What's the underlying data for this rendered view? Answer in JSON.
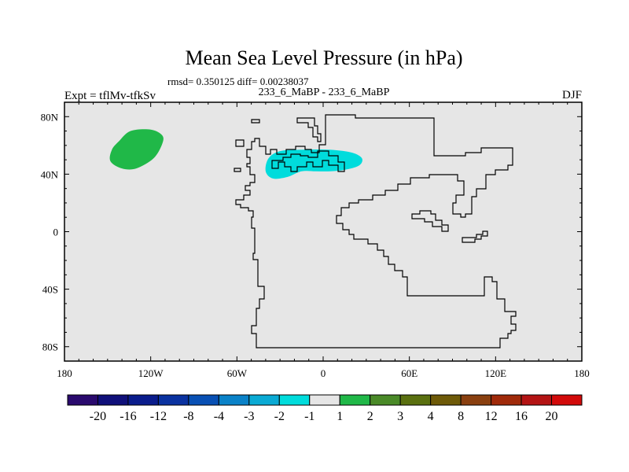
{
  "title": "Mean Sea Level Pressure (in hPa)",
  "stats_line": "rmsd= 0.350125 diff= 0.00238037",
  "left_label": "Expt = tflMv-tfkSv",
  "center_label": "233_6_MaBP - 233_6_MaBP",
  "season_label": "DJF",
  "map": {
    "background_color": "#e6e6e6",
    "lon_range": [
      -180,
      180
    ],
    "lat_range": [
      -90,
      90
    ],
    "x_ticks": [
      {
        "value": -180,
        "label": "180"
      },
      {
        "value": -120,
        "label": "120W"
      },
      {
        "value": -60,
        "label": "60W"
      },
      {
        "value": 0,
        "label": "0"
      },
      {
        "value": 60,
        "label": "60E"
      },
      {
        "value": 120,
        "label": "120E"
      },
      {
        "value": 180,
        "label": "180"
      }
    ],
    "y_ticks": [
      {
        "value": 80,
        "label": "80N"
      },
      {
        "value": 40,
        "label": "40N"
      },
      {
        "value": 0,
        "label": "0"
      },
      {
        "value": -40,
        "label": "40S"
      },
      {
        "value": -80,
        "label": "80S"
      }
    ],
    "anomalies": [
      {
        "name": "positive-anomaly-north-pacific",
        "color": "#20b848",
        "points": [
          [
            -142,
            63
          ],
          [
            -134,
            70
          ],
          [
            -120,
            71
          ],
          [
            -112,
            67
          ],
          [
            -112,
            61
          ],
          [
            -118,
            51
          ],
          [
            -130,
            44
          ],
          [
            -140,
            44
          ],
          [
            -148,
            49
          ],
          [
            -147,
            57
          ]
        ]
      },
      {
        "name": "negative-anomaly-north-atlantic",
        "color": "#00dcdc",
        "points": [
          [
            -40,
            42
          ],
          [
            -38,
            51
          ],
          [
            -30,
            56
          ],
          [
            -15,
            57
          ],
          [
            5,
            57
          ],
          [
            20,
            55
          ],
          [
            27,
            51
          ],
          [
            25,
            46
          ],
          [
            15,
            43
          ],
          [
            5,
            42
          ],
          [
            -5,
            42
          ],
          [
            -15,
            42
          ],
          [
            -25,
            38
          ],
          [
            -35,
            37
          ]
        ]
      }
    ]
  },
  "colorbar": {
    "colors": [
      "#2a0a6e",
      "#10107a",
      "#0a1c8c",
      "#0a32a0",
      "#0850b4",
      "#0a82c8",
      "#0aaad4",
      "#00dcdc",
      "#e6e6e6",
      "#20b848",
      "#4a8a28",
      "#5a7010",
      "#6e5a08",
      "#8a4010",
      "#a02a0a",
      "#b41414",
      "#d20a0a"
    ],
    "labels": [
      "-20",
      "-16",
      "-12",
      "-8",
      "-4",
      "-3",
      "-2",
      "-1",
      "1",
      "2",
      "3",
      "4",
      "8",
      "12",
      "16",
      "20"
    ]
  }
}
